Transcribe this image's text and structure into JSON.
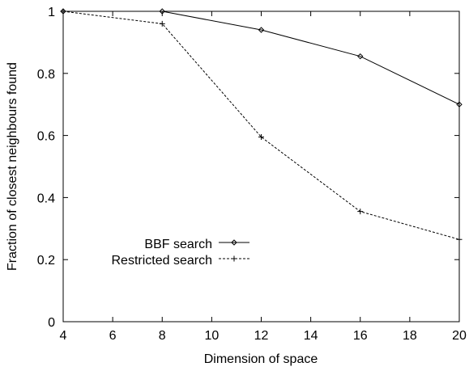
{
  "chart_data": {
    "type": "line",
    "xlabel": "Dimension of space",
    "ylabel": "Fraction of closest neighbours found",
    "xlim": [
      4,
      20
    ],
    "ylim": [
      0,
      1
    ],
    "xticks": [
      "4",
      "6",
      "8",
      "10",
      "12",
      "14",
      "16",
      "18",
      "20"
    ],
    "yticks": [
      "0",
      "0.2",
      "0.4",
      "0.6",
      "0.8",
      "1"
    ],
    "grid": false,
    "legend_position": "bottom-left",
    "series": [
      {
        "name": "BBF search",
        "marker": "diamond",
        "line_style": "solid",
        "x": [
          4,
          8,
          12,
          16,
          20
        ],
        "y": [
          1.0,
          1.0,
          0.94,
          0.855,
          0.7
        ]
      },
      {
        "name": "Restricted search",
        "marker": "plus",
        "line_style": "dashed",
        "x": [
          4,
          8,
          12,
          16,
          20
        ],
        "y": [
          1.0,
          0.96,
          0.595,
          0.355,
          0.265
        ]
      }
    ]
  }
}
